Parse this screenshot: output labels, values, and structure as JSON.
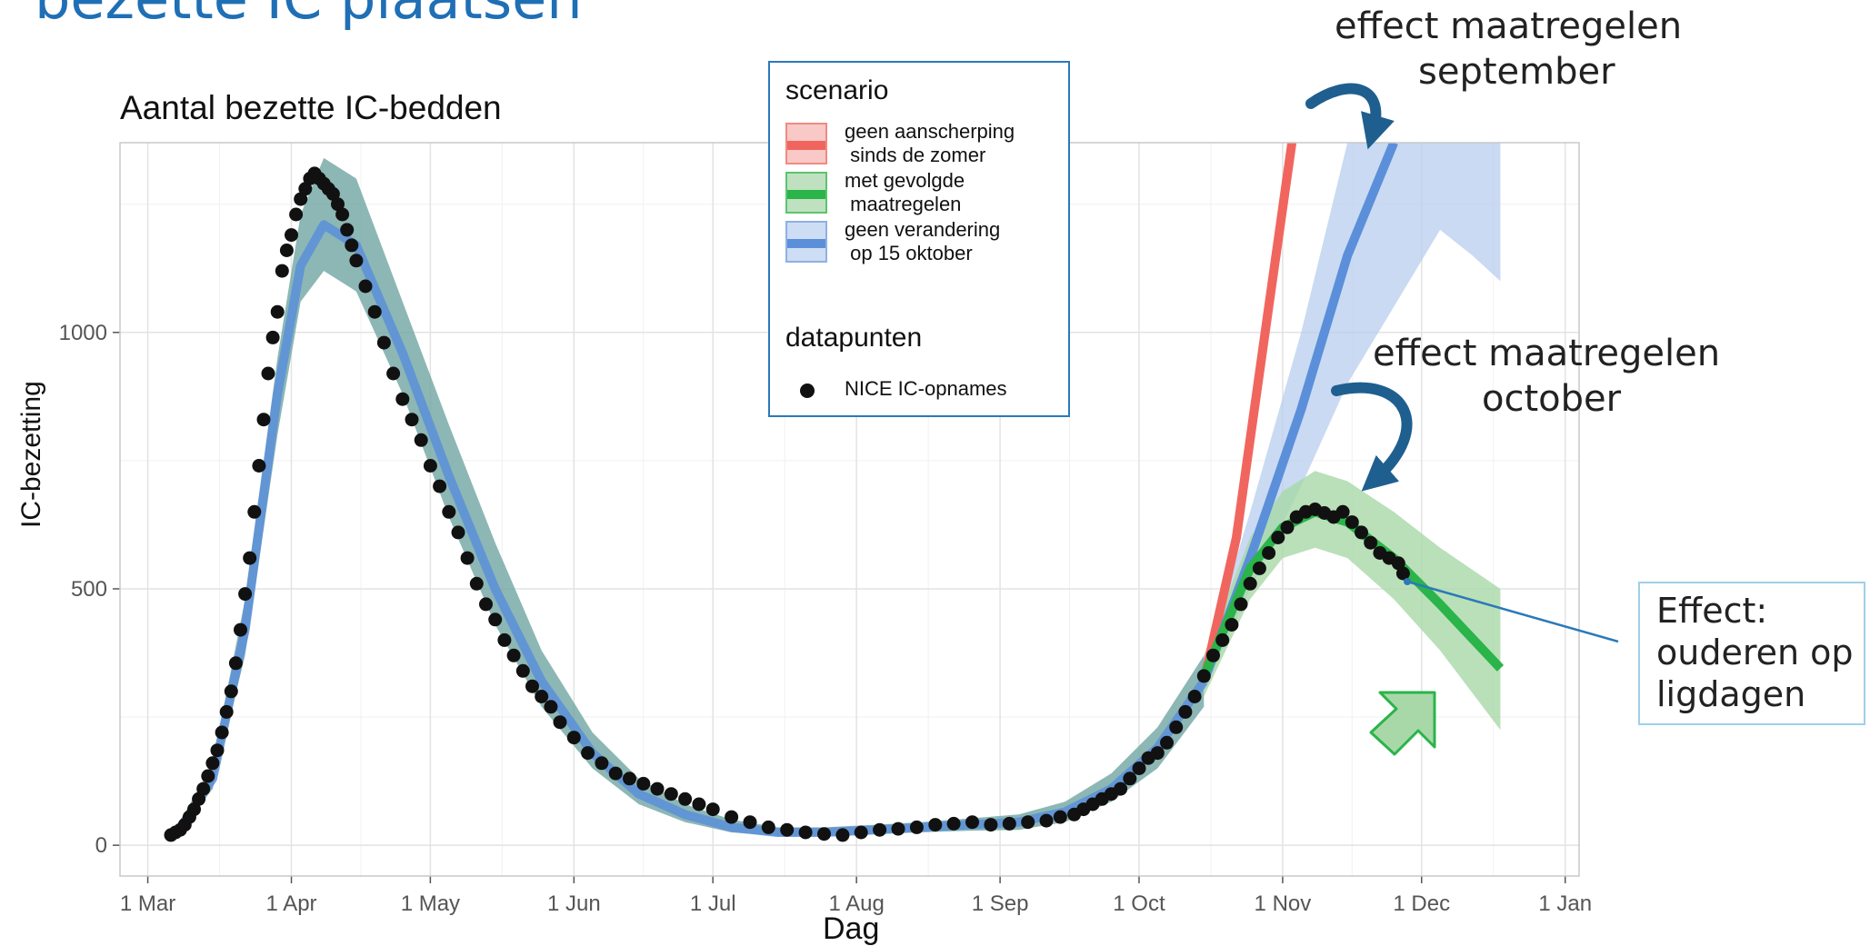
{
  "slide_title": "bezette IC plaatsen",
  "annotations": {
    "effect_september_line1": "effect maatregelen",
    "effect_september_line2": "september",
    "effect_october_line1": "effect maatregelen",
    "effect_october_line2": "october",
    "effect_box_line1": "Effect:",
    "effect_box_line2": "ouderen op",
    "effect_box_line3": "ligdagen"
  },
  "colors": {
    "red": "#f0665e",
    "green": "#2ab44a",
    "blue": "#5b8fd9",
    "blue_band": "#b7cdee",
    "green_band": "#a8d8a8",
    "combined_band": "#6fa5a3",
    "points": "#111111",
    "annotation_blue": "#1f5f8f"
  },
  "chart_data": {
    "type": "line",
    "title": "Aantal bezette IC-bedden",
    "xlabel": "Dag",
    "ylabel": "IC-bezetting",
    "x_ticks": [
      "1 Mar",
      "1 Apr",
      "1 May",
      "1 Jun",
      "1 Jul",
      "1 Aug",
      "1 Sep",
      "1 Oct",
      "1 Nov",
      "1 Dec",
      "1 Jan"
    ],
    "x_range": [
      "2020-02-24",
      "2021-01-04"
    ],
    "ylim": [
      -60,
      1370
    ],
    "y_ticks": [
      0,
      500,
      1000
    ],
    "grid": true,
    "legend": {
      "position": "top-center",
      "scenario_title": "scenario",
      "scenarios": [
        {
          "key": "red",
          "line1": "geen aanscherping",
          "line2": " sinds de zomer"
        },
        {
          "key": "green",
          "line1": "met gevolgde",
          "line2": " maatregelen"
        },
        {
          "key": "blue",
          "line1": "geen verandering",
          "line2": " op 15 oktober"
        }
      ],
      "points_title": "datapunten",
      "points_label": "NICE IC-opnames"
    },
    "model_fit": {
      "x": [
        "2020-03-07",
        "2020-03-15",
        "2020-03-22",
        "2020-03-29",
        "2020-04-03",
        "2020-04-08",
        "2020-04-15",
        "2020-04-25",
        "2020-05-05",
        "2020-05-15",
        "2020-05-25",
        "2020-06-05",
        "2020-06-15",
        "2020-06-25",
        "2020-07-05",
        "2020-07-15",
        "2020-07-25",
        "2020-08-05",
        "2020-08-15",
        "2020-08-25",
        "2020-09-05",
        "2020-09-15",
        "2020-09-25",
        "2020-10-05",
        "2020-10-15"
      ],
      "y": [
        20,
        130,
        420,
        880,
        1130,
        1210,
        1170,
        960,
        720,
        500,
        320,
        180,
        100,
        60,
        35,
        25,
        25,
        30,
        35,
        40,
        45,
        65,
        110,
        190,
        320
      ],
      "band_lower": [
        15,
        110,
        370,
        800,
        1060,
        1120,
        1080,
        880,
        640,
        430,
        270,
        150,
        80,
        45,
        25,
        18,
        18,
        22,
        25,
        28,
        30,
        45,
        85,
        150,
        270
      ],
      "band_upper": [
        30,
        160,
        480,
        950,
        1230,
        1340,
        1300,
        1060,
        820,
        590,
        380,
        220,
        130,
        80,
        50,
        35,
        35,
        40,
        45,
        52,
        60,
        85,
        140,
        230,
        370
      ]
    },
    "series": [
      {
        "key": "red",
        "x": [
          "2020-10-15",
          "2020-10-22",
          "2020-10-29",
          "2020-11-03"
        ],
        "y": [
          320,
          600,
          1050,
          1370
        ]
      },
      {
        "key": "blue",
        "x": [
          "2020-10-15",
          "2020-10-25",
          "2020-11-05",
          "2020-11-15",
          "2020-11-25"
        ],
        "y": [
          320,
          560,
          850,
          1150,
          1370
        ],
        "band_x": [
          "2020-10-15",
          "2020-10-25",
          "2020-11-05",
          "2020-11-15",
          "2020-11-25",
          "2020-12-05",
          "2020-12-12",
          "2020-12-18"
        ],
        "band_lower": [
          300,
          500,
          700,
          900,
          1050,
          1200,
          1150,
          1100
        ],
        "band_upper": [
          350,
          650,
          1000,
          1370,
          1370,
          1370,
          1370,
          1370
        ]
      },
      {
        "key": "green",
        "x": [
          "2020-10-15",
          "2020-10-25",
          "2020-11-01",
          "2020-11-08",
          "2020-11-15",
          "2020-11-25",
          "2020-12-05",
          "2020-12-18"
        ],
        "y": [
          330,
          540,
          620,
          650,
          630,
          560,
          470,
          345
        ],
        "band_x": [
          "2020-10-15",
          "2020-10-25",
          "2020-11-01",
          "2020-11-08",
          "2020-11-15",
          "2020-11-25",
          "2020-12-05",
          "2020-12-18"
        ],
        "band_lower": [
          290,
          480,
          560,
          580,
          560,
          480,
          380,
          225
        ],
        "band_upper": [
          370,
          600,
          690,
          730,
          710,
          650,
          580,
          500
        ]
      }
    ],
    "points": {
      "label": "NICE IC-opnames",
      "x": [
        "2020-03-06",
        "2020-03-07",
        "2020-03-08",
        "2020-03-09",
        "2020-03-10",
        "2020-03-11",
        "2020-03-12",
        "2020-03-13",
        "2020-03-14",
        "2020-03-15",
        "2020-03-16",
        "2020-03-17",
        "2020-03-18",
        "2020-03-19",
        "2020-03-20",
        "2020-03-21",
        "2020-03-22",
        "2020-03-23",
        "2020-03-24",
        "2020-03-25",
        "2020-03-26",
        "2020-03-27",
        "2020-03-28",
        "2020-03-29",
        "2020-03-30",
        "2020-03-31",
        "2020-04-01",
        "2020-04-02",
        "2020-04-03",
        "2020-04-04",
        "2020-04-05",
        "2020-04-06",
        "2020-04-07",
        "2020-04-08",
        "2020-04-09",
        "2020-04-10",
        "2020-04-11",
        "2020-04-12",
        "2020-04-13",
        "2020-04-14",
        "2020-04-15",
        "2020-04-17",
        "2020-04-19",
        "2020-04-21",
        "2020-04-23",
        "2020-04-25",
        "2020-04-27",
        "2020-04-29",
        "2020-05-01",
        "2020-05-03",
        "2020-05-05",
        "2020-05-07",
        "2020-05-09",
        "2020-05-11",
        "2020-05-13",
        "2020-05-15",
        "2020-05-17",
        "2020-05-19",
        "2020-05-21",
        "2020-05-23",
        "2020-05-25",
        "2020-05-27",
        "2020-05-29",
        "2020-06-01",
        "2020-06-04",
        "2020-06-07",
        "2020-06-10",
        "2020-06-13",
        "2020-06-16",
        "2020-06-19",
        "2020-06-22",
        "2020-06-25",
        "2020-06-28",
        "2020-07-01",
        "2020-07-05",
        "2020-07-09",
        "2020-07-13",
        "2020-07-17",
        "2020-07-21",
        "2020-07-25",
        "2020-07-29",
        "2020-08-02",
        "2020-08-06",
        "2020-08-10",
        "2020-08-14",
        "2020-08-18",
        "2020-08-22",
        "2020-08-26",
        "2020-08-30",
        "2020-09-03",
        "2020-09-07",
        "2020-09-11",
        "2020-09-14",
        "2020-09-17",
        "2020-09-19",
        "2020-09-21",
        "2020-09-23",
        "2020-09-25",
        "2020-09-27",
        "2020-09-29",
        "2020-10-01",
        "2020-10-03",
        "2020-10-05",
        "2020-10-07",
        "2020-10-09",
        "2020-10-11",
        "2020-10-13",
        "2020-10-15",
        "2020-10-17",
        "2020-10-19",
        "2020-10-21",
        "2020-10-23",
        "2020-10-25",
        "2020-10-27",
        "2020-10-29",
        "2020-10-31",
        "2020-11-02",
        "2020-11-04",
        "2020-11-06",
        "2020-11-08",
        "2020-11-10",
        "2020-11-12",
        "2020-11-14",
        "2020-11-16",
        "2020-11-18",
        "2020-11-20",
        "2020-11-22",
        "2020-11-24",
        "2020-11-26",
        "2020-11-27"
      ],
      "y": [
        20,
        25,
        30,
        40,
        55,
        70,
        90,
        110,
        135,
        160,
        185,
        220,
        260,
        300,
        355,
        420,
        490,
        560,
        650,
        740,
        830,
        920,
        990,
        1040,
        1120,
        1160,
        1190,
        1230,
        1260,
        1280,
        1300,
        1310,
        1300,
        1290,
        1280,
        1270,
        1250,
        1230,
        1200,
        1170,
        1140,
        1090,
        1040,
        980,
        920,
        870,
        830,
        790,
        740,
        700,
        650,
        610,
        560,
        510,
        470,
        440,
        400,
        370,
        340,
        310,
        290,
        270,
        240,
        210,
        180,
        160,
        140,
        130,
        120,
        110,
        100,
        90,
        80,
        70,
        55,
        45,
        35,
        30,
        25,
        22,
        20,
        25,
        30,
        32,
        35,
        40,
        42,
        45,
        40,
        42,
        45,
        48,
        55,
        60,
        70,
        80,
        90,
        100,
        110,
        130,
        150,
        170,
        180,
        200,
        230,
        260,
        290,
        330,
        370,
        400,
        430,
        470,
        510,
        540,
        570,
        600,
        620,
        640,
        650,
        655,
        648,
        640,
        650,
        630,
        610,
        590,
        570,
        560,
        550,
        530
      ]
    }
  }
}
